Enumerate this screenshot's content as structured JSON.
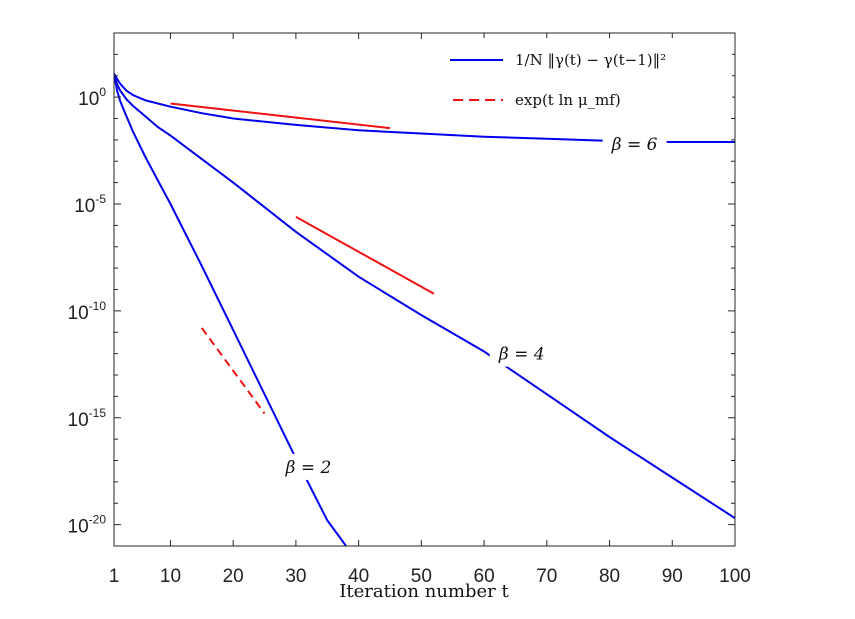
{
  "chart_data": {
    "type": "line",
    "xlabel": "Iteration number t",
    "x_ticks": [
      1,
      10,
      20,
      30,
      40,
      50,
      60,
      70,
      80,
      90,
      100
    ],
    "xlim": [
      1,
      100
    ],
    "y_scale": "log",
    "ylim_log10": [
      -21,
      3
    ],
    "y_ticks": [
      {
        "base": "10",
        "exp": "0",
        "log10": 0
      },
      {
        "base": "10",
        "exp": "-5",
        "log10": -5
      },
      {
        "base": "10",
        "exp": "-10",
        "log10": -10
      },
      {
        "base": "10",
        "exp": "-15",
        "log10": -15
      },
      {
        "base": "10",
        "exp": "-20",
        "log10": -20
      }
    ],
    "grid": false,
    "legend_position": "top-right",
    "legend": [
      {
        "label": "1/N ‖γ(t) − γ(t−1)‖²",
        "style": "solid",
        "color": "#0000ee"
      },
      {
        "label": "exp(t ln μ_mf)",
        "style": "dashed",
        "color": "#ee1111"
      }
    ],
    "series": [
      {
        "annotation": "β = 6",
        "annotation_at": {
          "t": 84,
          "log10": -2.2
        },
        "color": "#0000ee",
        "t": [
          1,
          1.5,
          2,
          3,
          4,
          6,
          8,
          10,
          15,
          20,
          30,
          40,
          50,
          60,
          70,
          80,
          90,
          100
        ],
        "log10": [
          1.1,
          0.85,
          0.62,
          0.3,
          0.1,
          -0.15,
          -0.3,
          -0.45,
          -0.75,
          -1.0,
          -1.3,
          -1.55,
          -1.7,
          -1.85,
          -1.95,
          -2.05,
          -2.1,
          -2.1
        ]
      },
      {
        "annotation": "β = 4",
        "annotation_at": {
          "t": 66,
          "log10": -12.0
        },
        "color": "#0000ee",
        "t": [
          1,
          1.5,
          2,
          3,
          4,
          6,
          8,
          10,
          15,
          20,
          30,
          40,
          50,
          60,
          70,
          80,
          90,
          100
        ],
        "log10": [
          1.1,
          0.6,
          0.3,
          -0.1,
          -0.4,
          -0.9,
          -1.4,
          -1.8,
          -2.9,
          -4.0,
          -6.3,
          -8.4,
          -10.2,
          -11.9,
          -13.9,
          -15.9,
          -17.8,
          -19.7
        ]
      },
      {
        "annotation": "β = 2",
        "annotation_at": {
          "t": 32,
          "log10": -17.3
        },
        "color": "#0000ee",
        "t": [
          1,
          1.5,
          2,
          3,
          4,
          6,
          8,
          10,
          15,
          20,
          25,
          30,
          35,
          38
        ],
        "log10": [
          1.1,
          0.3,
          -0.2,
          -0.9,
          -1.6,
          -2.8,
          -3.9,
          -5.0,
          -7.9,
          -10.9,
          -13.9,
          -16.9,
          -19.8,
          -21.0
        ]
      }
    ],
    "reference_lines": [
      {
        "style": "solid",
        "color": "#ee1111",
        "t": [
          10,
          45
        ],
        "log10": [
          -0.3,
          -1.45
        ]
      },
      {
        "style": "solid",
        "color": "#ee1111",
        "t": [
          30,
          52
        ],
        "log10": [
          -5.6,
          -9.2
        ]
      },
      {
        "style": "dashed",
        "color": "#ee1111",
        "t": [
          15,
          25
        ],
        "log10": [
          -10.8,
          -14.8
        ]
      }
    ]
  }
}
